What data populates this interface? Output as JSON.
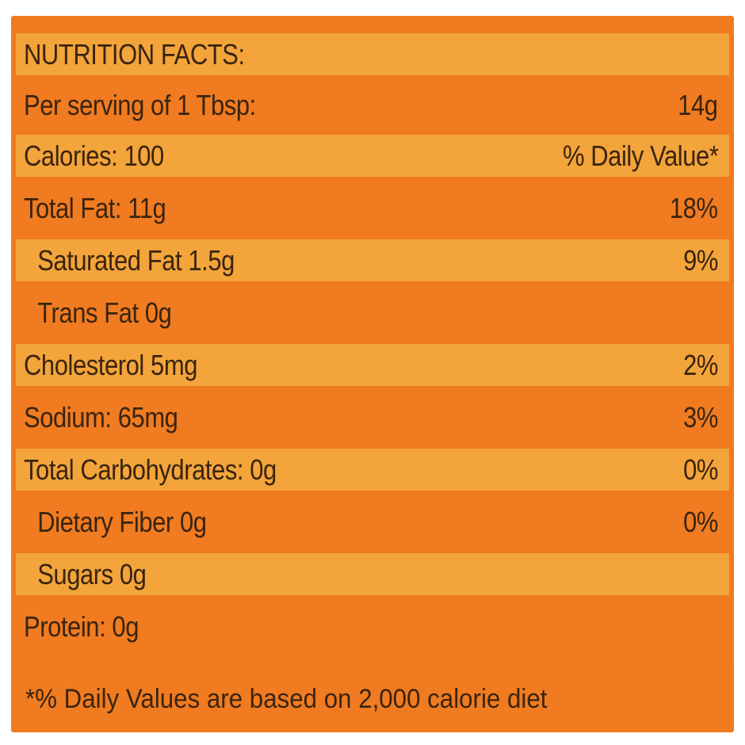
{
  "label": {
    "title": "NUTRITION FACTS:",
    "rows": [
      {
        "name": "Per serving of 1 Tbsp:",
        "value": "14g"
      },
      {
        "name": "Calories: 100",
        "value": "% Daily Value*"
      },
      {
        "name": "Total Fat: 11g",
        "value": "18%"
      },
      {
        "name": "Saturated Fat 1.5g",
        "value": "9%"
      },
      {
        "name": "Trans Fat 0g",
        "value": ""
      },
      {
        "name": "Cholesterol 5mg",
        "value": "2%"
      },
      {
        "name": "Sodium: 65mg",
        "value": "3%"
      },
      {
        "name": "Total Carbohydrates: 0g",
        "value": "0%"
      },
      {
        "name": "Dietary Fiber 0g",
        "value": "0%"
      },
      {
        "name": "Sugars 0g",
        "value": ""
      },
      {
        "name": "Protein: 0g",
        "value": ""
      }
    ],
    "footnote": "*% Daily Values are based on 2,000 calorie diet"
  },
  "colors": {
    "light_stripe": "#f3a43a",
    "dark_stripe": "#f07b20",
    "text": "#3a2410"
  }
}
